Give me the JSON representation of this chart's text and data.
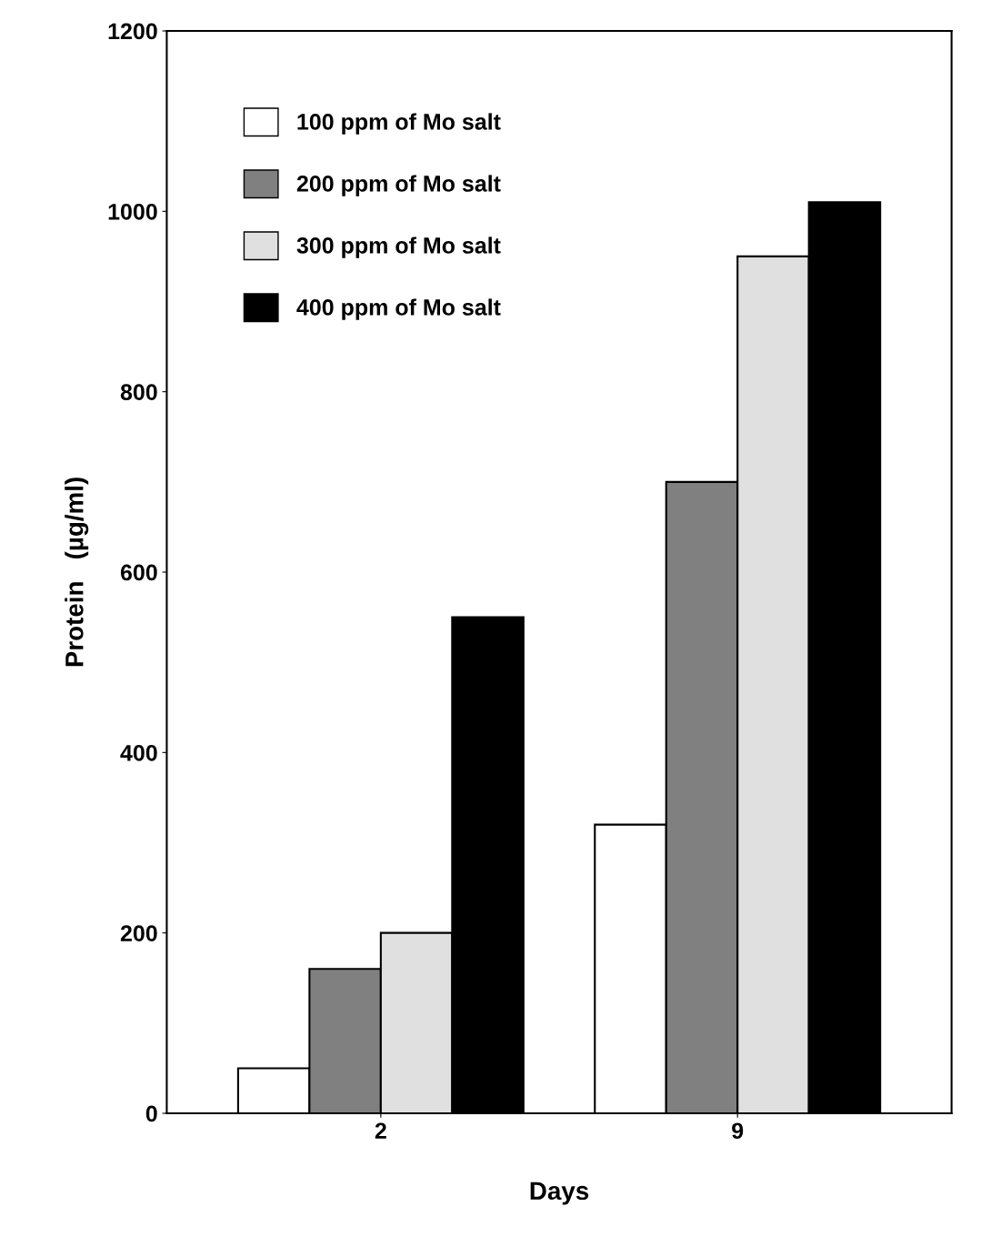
{
  "chart_data": {
    "type": "bar",
    "xlabel": "Days",
    "ylabel": "Protein   (µg/ml)",
    "categories": [
      "2",
      "9"
    ],
    "series": [
      {
        "name": "100 ppm of Mo salt",
        "color": "#ffffff",
        "values": [
          50,
          320
        ]
      },
      {
        "name": "200 ppm of Mo salt",
        "color": "#808080",
        "values": [
          160,
          700
        ]
      },
      {
        "name": "300 ppm of Mo salt",
        "color": "#e0e0e0",
        "values": [
          200,
          950
        ]
      },
      {
        "name": "400 ppm of Mo salt",
        "color": "#000000",
        "values": [
          550,
          1010
        ]
      }
    ],
    "ylim": [
      0,
      1200
    ],
    "yticks": [
      0,
      200,
      400,
      600,
      800,
      1000,
      1200
    ],
    "grid": false,
    "legend": "top left"
  }
}
